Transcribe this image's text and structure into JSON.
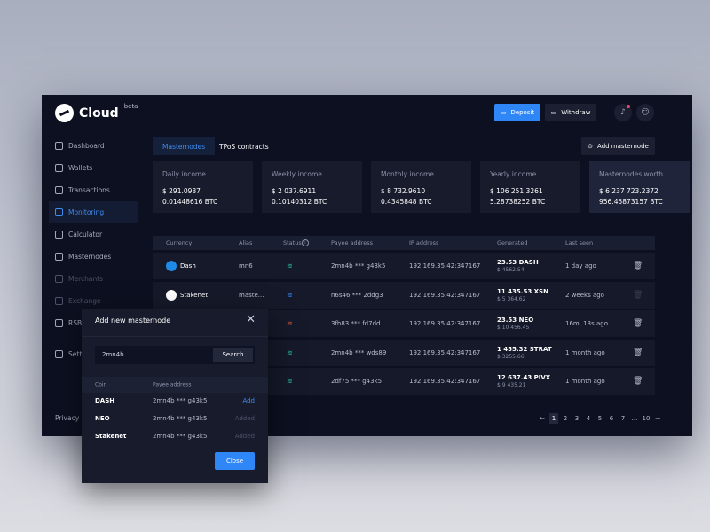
{
  "app": {
    "name": "Cloud",
    "badge": "beta"
  },
  "header": {
    "deposit": "Deposit",
    "withdraw": "Withdraw"
  },
  "sidebar": {
    "items": [
      {
        "label": "Dashboard",
        "state": "normal"
      },
      {
        "label": "Wallets",
        "state": "normal"
      },
      {
        "label": "Transactions",
        "state": "normal"
      },
      {
        "label": "Monitoring",
        "state": "active"
      },
      {
        "label": "Calculator",
        "state": "normal"
      },
      {
        "label": "Masternodes",
        "state": "normal"
      },
      {
        "label": "Merchants",
        "state": "dim"
      },
      {
        "label": "Exchange",
        "state": "dim"
      },
      {
        "label": "RSB",
        "state": "normal"
      },
      {
        "label": "Settings",
        "state": "normal"
      }
    ],
    "privacy": "Privacy"
  },
  "tabs": [
    {
      "label": "Masternodes",
      "active": true
    },
    {
      "label": "TPoS contracts",
      "active": false
    }
  ],
  "add_masternode": "Add masternode",
  "stats": [
    {
      "title": "Daily income",
      "usd": "$ 291.0987",
      "btc": "0.01448616 BTC"
    },
    {
      "title": "Weekly income",
      "usd": "$ 2 037.6911",
      "btc": "0.10140312 BTC"
    },
    {
      "title": "Monthly income",
      "usd": "$ 8 732.9610",
      "btc": "0.4345848 BTC"
    },
    {
      "title": "Yearly income",
      "usd": "$ 106 251.3261",
      "btc": "5.28738252 BTC"
    },
    {
      "title": "Masternodes worth",
      "usd": "$ 6 237 723.2372",
      "btc": "956.45873157 BTC"
    }
  ],
  "table": {
    "headers": [
      "Currency",
      "Alias",
      "Status",
      "Payee address",
      "IP address",
      "Generated",
      "Last seen"
    ],
    "rows": [
      {
        "currency": "Dash",
        "alias": "mn6",
        "status": "online",
        "payee": "2mn4b *** g43k5",
        "ip": "192.169.35.42:347167",
        "gen": "23.53 DASH",
        "gen_usd": "$ 4562.54",
        "last": "1 day ago"
      },
      {
        "currency": "Stakenet",
        "alias": "maste...",
        "status": "syncing",
        "payee": "n6s46 *** 2ddg3",
        "ip": "192.169.35.42:347167",
        "gen": "11 435.53 XSN",
        "gen_usd": "$ 5 364.62",
        "last": "2 weeks ago"
      },
      {
        "currency": "",
        "alias": "",
        "status": "offline",
        "payee": "3fh83 *** fd7dd",
        "ip": "192.169.35.42:347167",
        "gen": "23.53 NEO",
        "gen_usd": "$ 10 456.45",
        "last": "16m, 13s ago"
      },
      {
        "currency": "",
        "alias": "",
        "status": "online",
        "payee": "2mn4b *** wds89",
        "ip": "192.169.35.42:347167",
        "gen": "1 455.32 STRAT",
        "gen_usd": "$ 3255.66",
        "last": "1 month ago"
      },
      {
        "currency": "",
        "alias": "",
        "status": "online",
        "payee": "2df75 *** g43k5",
        "ip": "192.169.35.42:347167",
        "gen": "12 637.43 PIVX",
        "gen_usd": "$ 9 435.21",
        "last": "1 month ago"
      }
    ]
  },
  "pagination": {
    "prev": "←",
    "pages": [
      "1",
      "2",
      "3",
      "4",
      "5",
      "6",
      "7",
      "...",
      "10"
    ],
    "current": "1",
    "next": "→"
  },
  "modal": {
    "title": "Add new masternode",
    "search_value": "2mn4b",
    "search_button": "Search",
    "headers": [
      "Coin",
      "Payee address"
    ],
    "rows": [
      {
        "coin": "DASH",
        "payee": "2mn4b *** g43k5",
        "action": "Add"
      },
      {
        "coin": "NEO",
        "payee": "2mn4b *** g43k5",
        "action": "Added"
      },
      {
        "coin": "Stakenet",
        "payee": "2mn4b *** g43k5",
        "action": "Added"
      }
    ],
    "close": "Close"
  },
  "colors": {
    "accent": "#2f86f7",
    "online": "#25b59a",
    "offline": "#d9583b",
    "bg": "#0d1020"
  }
}
